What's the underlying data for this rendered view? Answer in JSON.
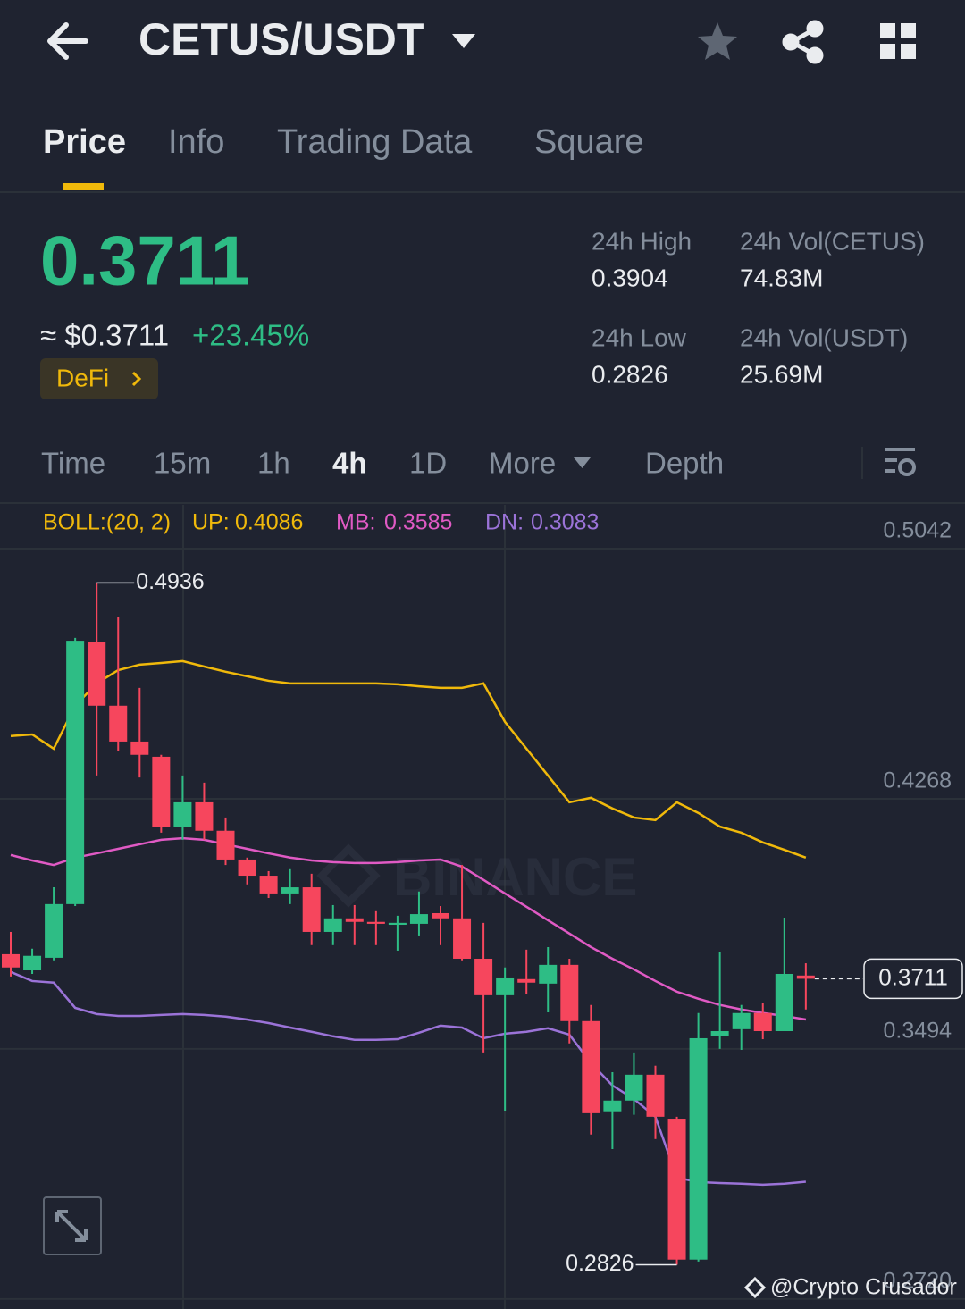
{
  "header": {
    "pair": "CETUS/USDT"
  },
  "tabs": [
    "Price",
    "Info",
    "Trading Data",
    "Square"
  ],
  "ticker": {
    "last_price": "0.3711",
    "fiat_price": "≈ $0.3711",
    "change": "+23.45%",
    "tag": "DeFi",
    "stats": [
      {
        "label": "24h High",
        "value": "0.3904"
      },
      {
        "label": "24h Vol(CETUS)",
        "value": "74.83M"
      },
      {
        "label": "24h Low",
        "value": "0.2826"
      },
      {
        "label": "24h Vol(USDT)",
        "value": "25.69M"
      }
    ]
  },
  "intervals": [
    "Time",
    "15m",
    "1h",
    "4h",
    "1D",
    "More",
    "Depth"
  ],
  "watermark": "BINANCE",
  "credit": "@Crypto Crusador",
  "chart_data": {
    "type": "candlestick",
    "ylim": [
      0.2703,
      0.5042
    ],
    "yticks": [
      0.5042,
      0.4268,
      0.3494,
      {
        "value": 0.272,
        "label": "0.2720"
      }
    ],
    "grid": true,
    "up_color": "#2ebd85",
    "down_color": "#f6465d",
    "open": [
      0.3787,
      0.3737,
      0.3776,
      0.3942,
      0.4752,
      0.4556,
      0.4445,
      0.4398,
      0.418,
      0.4257,
      0.4169,
      0.408,
      0.403,
      0.3975,
      0.3994,
      0.3856,
      0.3898,
      0.3887,
      0.3878,
      0.3881,
      0.3914,
      0.3898,
      0.3773,
      0.366,
      0.371,
      0.3696,
      0.3754,
      0.358,
      0.3301,
      0.3334,
      0.3414,
      0.3278,
      0.2842,
      0.3533,
      0.3555,
      0.3605,
      0.3549,
      0.3721
    ],
    "high": [
      0.3856,
      0.3804,
      0.3994,
      0.4766,
      0.4936,
      0.4832,
      0.4611,
      0.4404,
      0.434,
      0.4318,
      0.421,
      0.4086,
      0.4044,
      0.405,
      0.4036,
      0.3939,
      0.3939,
      0.392,
      0.3906,
      0.3981,
      0.3936,
      0.4063,
      0.3884,
      0.3746,
      0.3801,
      0.3809,
      0.3773,
      0.363,
      0.3422,
      0.3483,
      0.3442,
      0.3284,
      0.3605,
      0.3795,
      0.363,
      0.3635,
      0.39,
      0.3759
    ],
    "low": [
      0.3718,
      0.3726,
      0.3768,
      0.3936,
      0.434,
      0.4417,
      0.4334,
      0.4163,
      0.4141,
      0.4141,
      0.4063,
      0.4003,
      0.3961,
      0.3942,
      0.3815,
      0.3815,
      0.3815,
      0.3815,
      0.3798,
      0.3845,
      0.3815,
      0.3768,
      0.3483,
      0.3303,
      0.3665,
      0.3607,
      0.3511,
      0.3229,
      0.3184,
      0.329,
      0.3215,
      0.2826,
      0.2836,
      0.3494,
      0.3491,
      0.3524,
      0.3549,
      0.3616
    ],
    "close": [
      0.3746,
      0.3782,
      0.3942,
      0.4757,
      0.4556,
      0.4445,
      0.4404,
      0.418,
      0.4257,
      0.4169,
      0.408,
      0.403,
      0.3975,
      0.3994,
      0.3856,
      0.3898,
      0.3887,
      0.3881,
      0.3884,
      0.3911,
      0.3898,
      0.3773,
      0.366,
      0.3715,
      0.3699,
      0.3754,
      0.358,
      0.3295,
      0.3334,
      0.3414,
      0.3284,
      0.2842,
      0.3527,
      0.3549,
      0.3605,
      0.3549,
      0.3726,
      0.3711
    ],
    "indicator": {
      "label": "BOLL:(20, 2)",
      "color": "#f0b90b",
      "lines": [
        {
          "name": "UP:",
          "color": "#f0b90b",
          "values": [
            0.4462,
            0.4467,
            0.4423,
            0.4556,
            0.4625,
            0.4666,
            0.4683,
            0.4688,
            0.4694,
            0.4677,
            0.4661,
            0.4647,
            0.4633,
            0.4625,
            0.4625,
            0.4625,
            0.4625,
            0.4625,
            0.4622,
            0.4616,
            0.4611,
            0.4611,
            0.4625,
            0.4506,
            0.4423,
            0.434,
            0.4257,
            0.4271,
            0.4238,
            0.421,
            0.4202,
            0.4257,
            0.4224,
            0.4182,
            0.4163,
            0.4133,
            0.411,
            0.4086
          ]
        },
        {
          "name": "MB:",
          "color": "#e05ac4",
          "values": [
            0.4094,
            0.4077,
            0.4063,
            0.4086,
            0.4099,
            0.4113,
            0.4127,
            0.4141,
            0.4146,
            0.4141,
            0.4127,
            0.4113,
            0.4099,
            0.4086,
            0.4077,
            0.4072,
            0.4069,
            0.4069,
            0.4072,
            0.4077,
            0.408,
            0.4058,
            0.4017,
            0.3975,
            0.3934,
            0.3892,
            0.3851,
            0.3809,
            0.3773,
            0.374,
            0.3704,
            0.3671,
            0.3649,
            0.363,
            0.3616,
            0.3605,
            0.3596,
            0.3585
          ]
        },
        {
          "name": "DN:",
          "color": "#9b73d8",
          "values": [
            0.3732,
            0.3704,
            0.3699,
            0.3621,
            0.3602,
            0.3596,
            0.3596,
            0.3599,
            0.3602,
            0.3599,
            0.3594,
            0.3585,
            0.3574,
            0.356,
            0.3547,
            0.3533,
            0.3522,
            0.3522,
            0.3524,
            0.3544,
            0.3566,
            0.356,
            0.3527,
            0.3541,
            0.3547,
            0.3558,
            0.3538,
            0.345,
            0.3381,
            0.3339,
            0.3284,
            0.3096,
            0.3082,
            0.3079,
            0.3077,
            0.3074,
            0.3077,
            0.3083
          ]
        }
      ]
    }
  }
}
